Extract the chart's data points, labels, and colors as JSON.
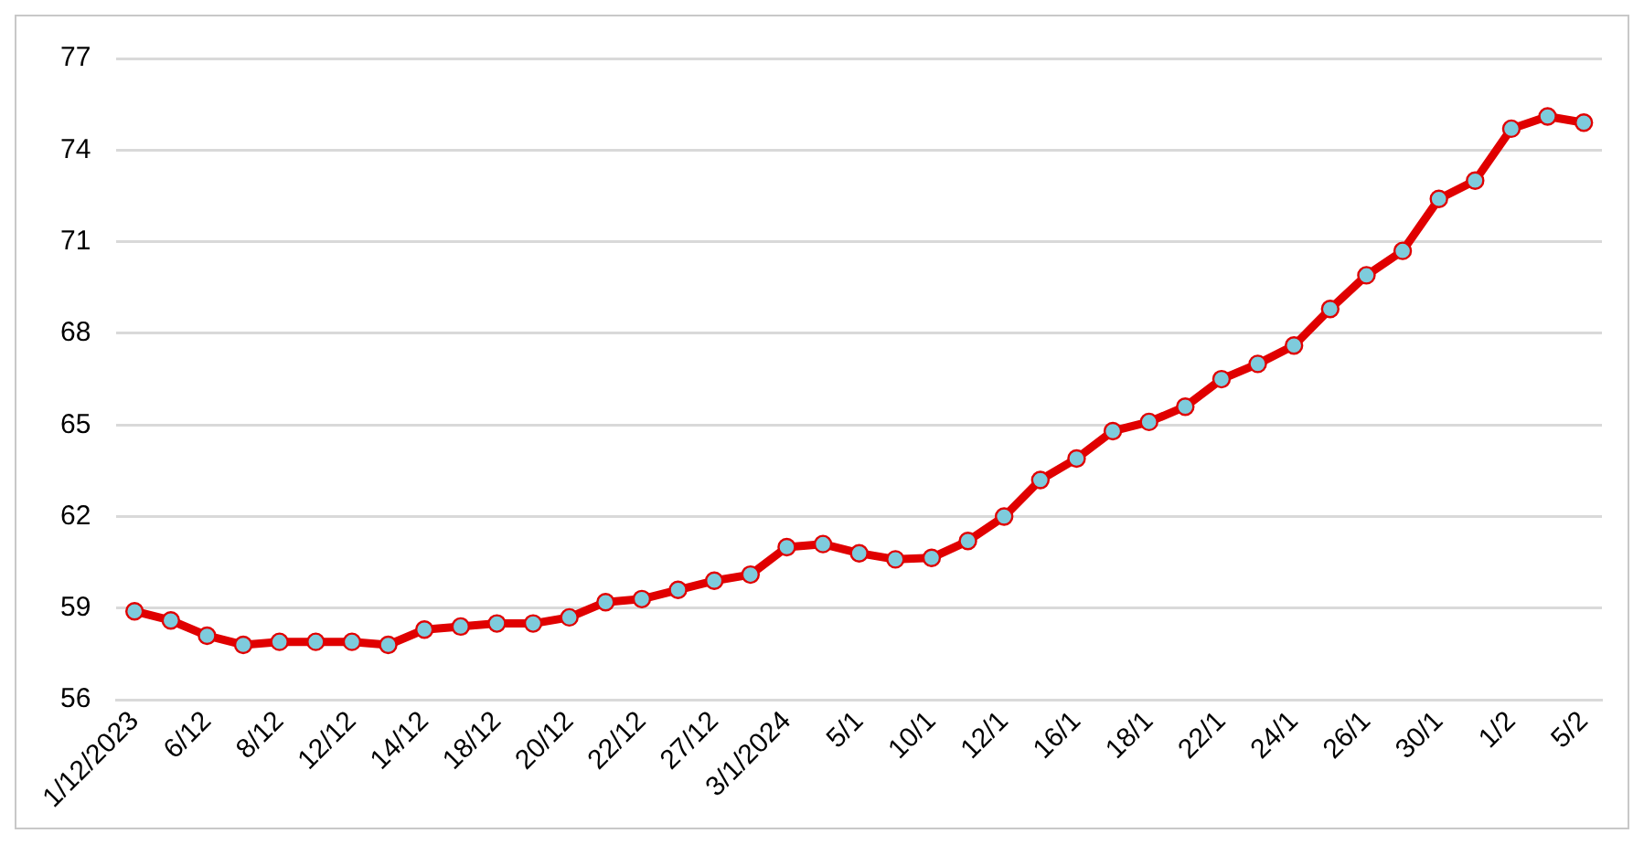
{
  "chart_data": {
    "type": "line",
    "categories": [
      "1/12/2023",
      null,
      "6/12",
      null,
      "8/12",
      null,
      "12/12",
      null,
      "14/12",
      null,
      "18/12",
      null,
      "20/12",
      null,
      "22/12",
      null,
      "27/12",
      null,
      "3/1/2024",
      null,
      "5/1",
      null,
      "10/1",
      null,
      "12/1",
      null,
      "16/1",
      null,
      "18/1",
      null,
      "22/1",
      null,
      "24/1",
      null,
      "26/1",
      null,
      "30/1",
      null,
      "1/2",
      null,
      "5/2"
    ],
    "series": [
      {
        "color": "#e00000",
        "values": [
          58.9,
          58.6,
          58.1,
          57.8,
          57.9,
          57.9,
          57.9,
          57.8,
          58.3,
          58.4,
          58.5,
          58.5,
          58.7,
          59.2,
          59.3,
          59.6,
          59.9,
          60.1,
          61.0,
          61.1,
          60.8,
          60.6,
          60.65,
          61.2,
          62.0,
          63.2,
          63.9,
          64.8,
          65.1,
          65.6,
          66.5,
          67.0,
          67.6,
          68.8,
          69.9,
          70.7,
          72.4,
          73.0,
          74.7,
          75.1,
          74.9
        ]
      }
    ],
    "ylim": [
      56,
      77
    ],
    "yticks": [
      56,
      59,
      62,
      65,
      68,
      71,
      74,
      77
    ],
    "grid": "y",
    "legend": false,
    "marker": "circle",
    "line_style": "solid"
  }
}
